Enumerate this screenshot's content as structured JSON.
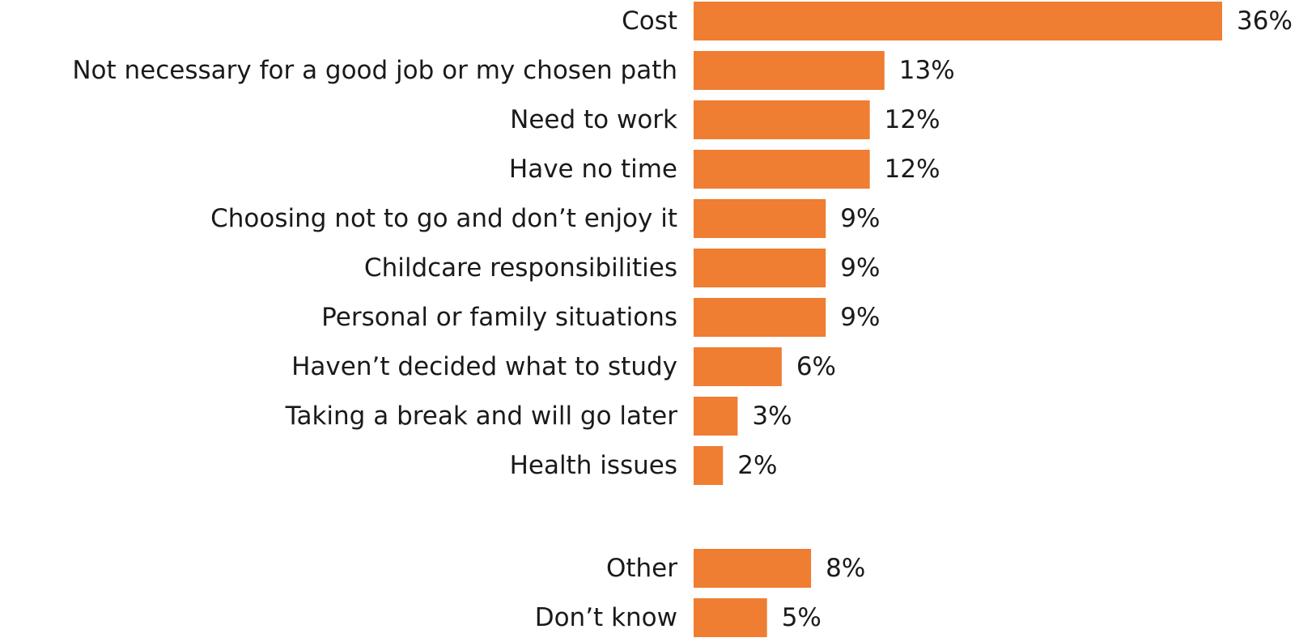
{
  "chart_data": {
    "type": "bar",
    "orientation": "horizontal",
    "color": "#EF7D32",
    "xlim": [
      0,
      36
    ],
    "grid": false,
    "legend": "none",
    "title": "",
    "xlabel": "",
    "ylabel": "",
    "unit": "%",
    "groups": [
      {
        "categories": [
          "Cost",
          "Not necessary for a good job or my chosen path",
          "Need to work",
          "Have no time",
          "Choosing not to go and don’t enjoy it",
          "Childcare responsibilities",
          "Personal or family situations",
          "Haven’t decided what to study",
          "Taking a break and will go later",
          "Health issues"
        ],
        "values": [
          36,
          13,
          12,
          12,
          9,
          9,
          9,
          6,
          3,
          2
        ],
        "value_labels": [
          "36%",
          "13%",
          "12%",
          "12%",
          "9%",
          "9%",
          "9%",
          "6%",
          "3%",
          "2%"
        ]
      },
      {
        "categories": [
          "Other",
          "Don’t know"
        ],
        "values": [
          8,
          5
        ],
        "value_labels": [
          "8%",
          "5%"
        ]
      }
    ]
  }
}
